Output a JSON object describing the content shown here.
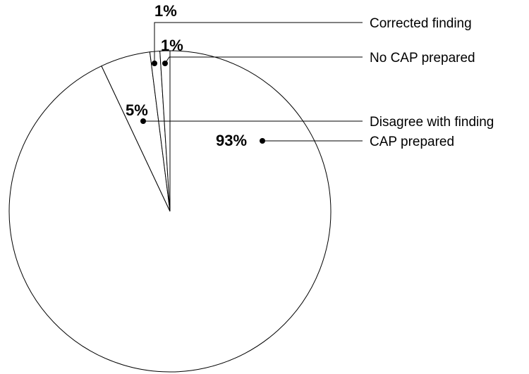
{
  "chart_data": {
    "type": "pie",
    "title": "",
    "slices": [
      {
        "label": "CAP prepared",
        "value": 93,
        "value_label": "93%",
        "color": "#ffffff"
      },
      {
        "label": "Disagree with finding",
        "value": 5,
        "value_label": "5%",
        "color": "#ffffff"
      },
      {
        "label": "Corrected finding",
        "value": 1,
        "value_label": "1%",
        "color": "#ffffff"
      },
      {
        "label": "No CAP prepared",
        "value": 1,
        "value_label": "1%",
        "color": "#ffffff"
      }
    ],
    "legend_placement": "right",
    "outline_color": "#000000"
  }
}
